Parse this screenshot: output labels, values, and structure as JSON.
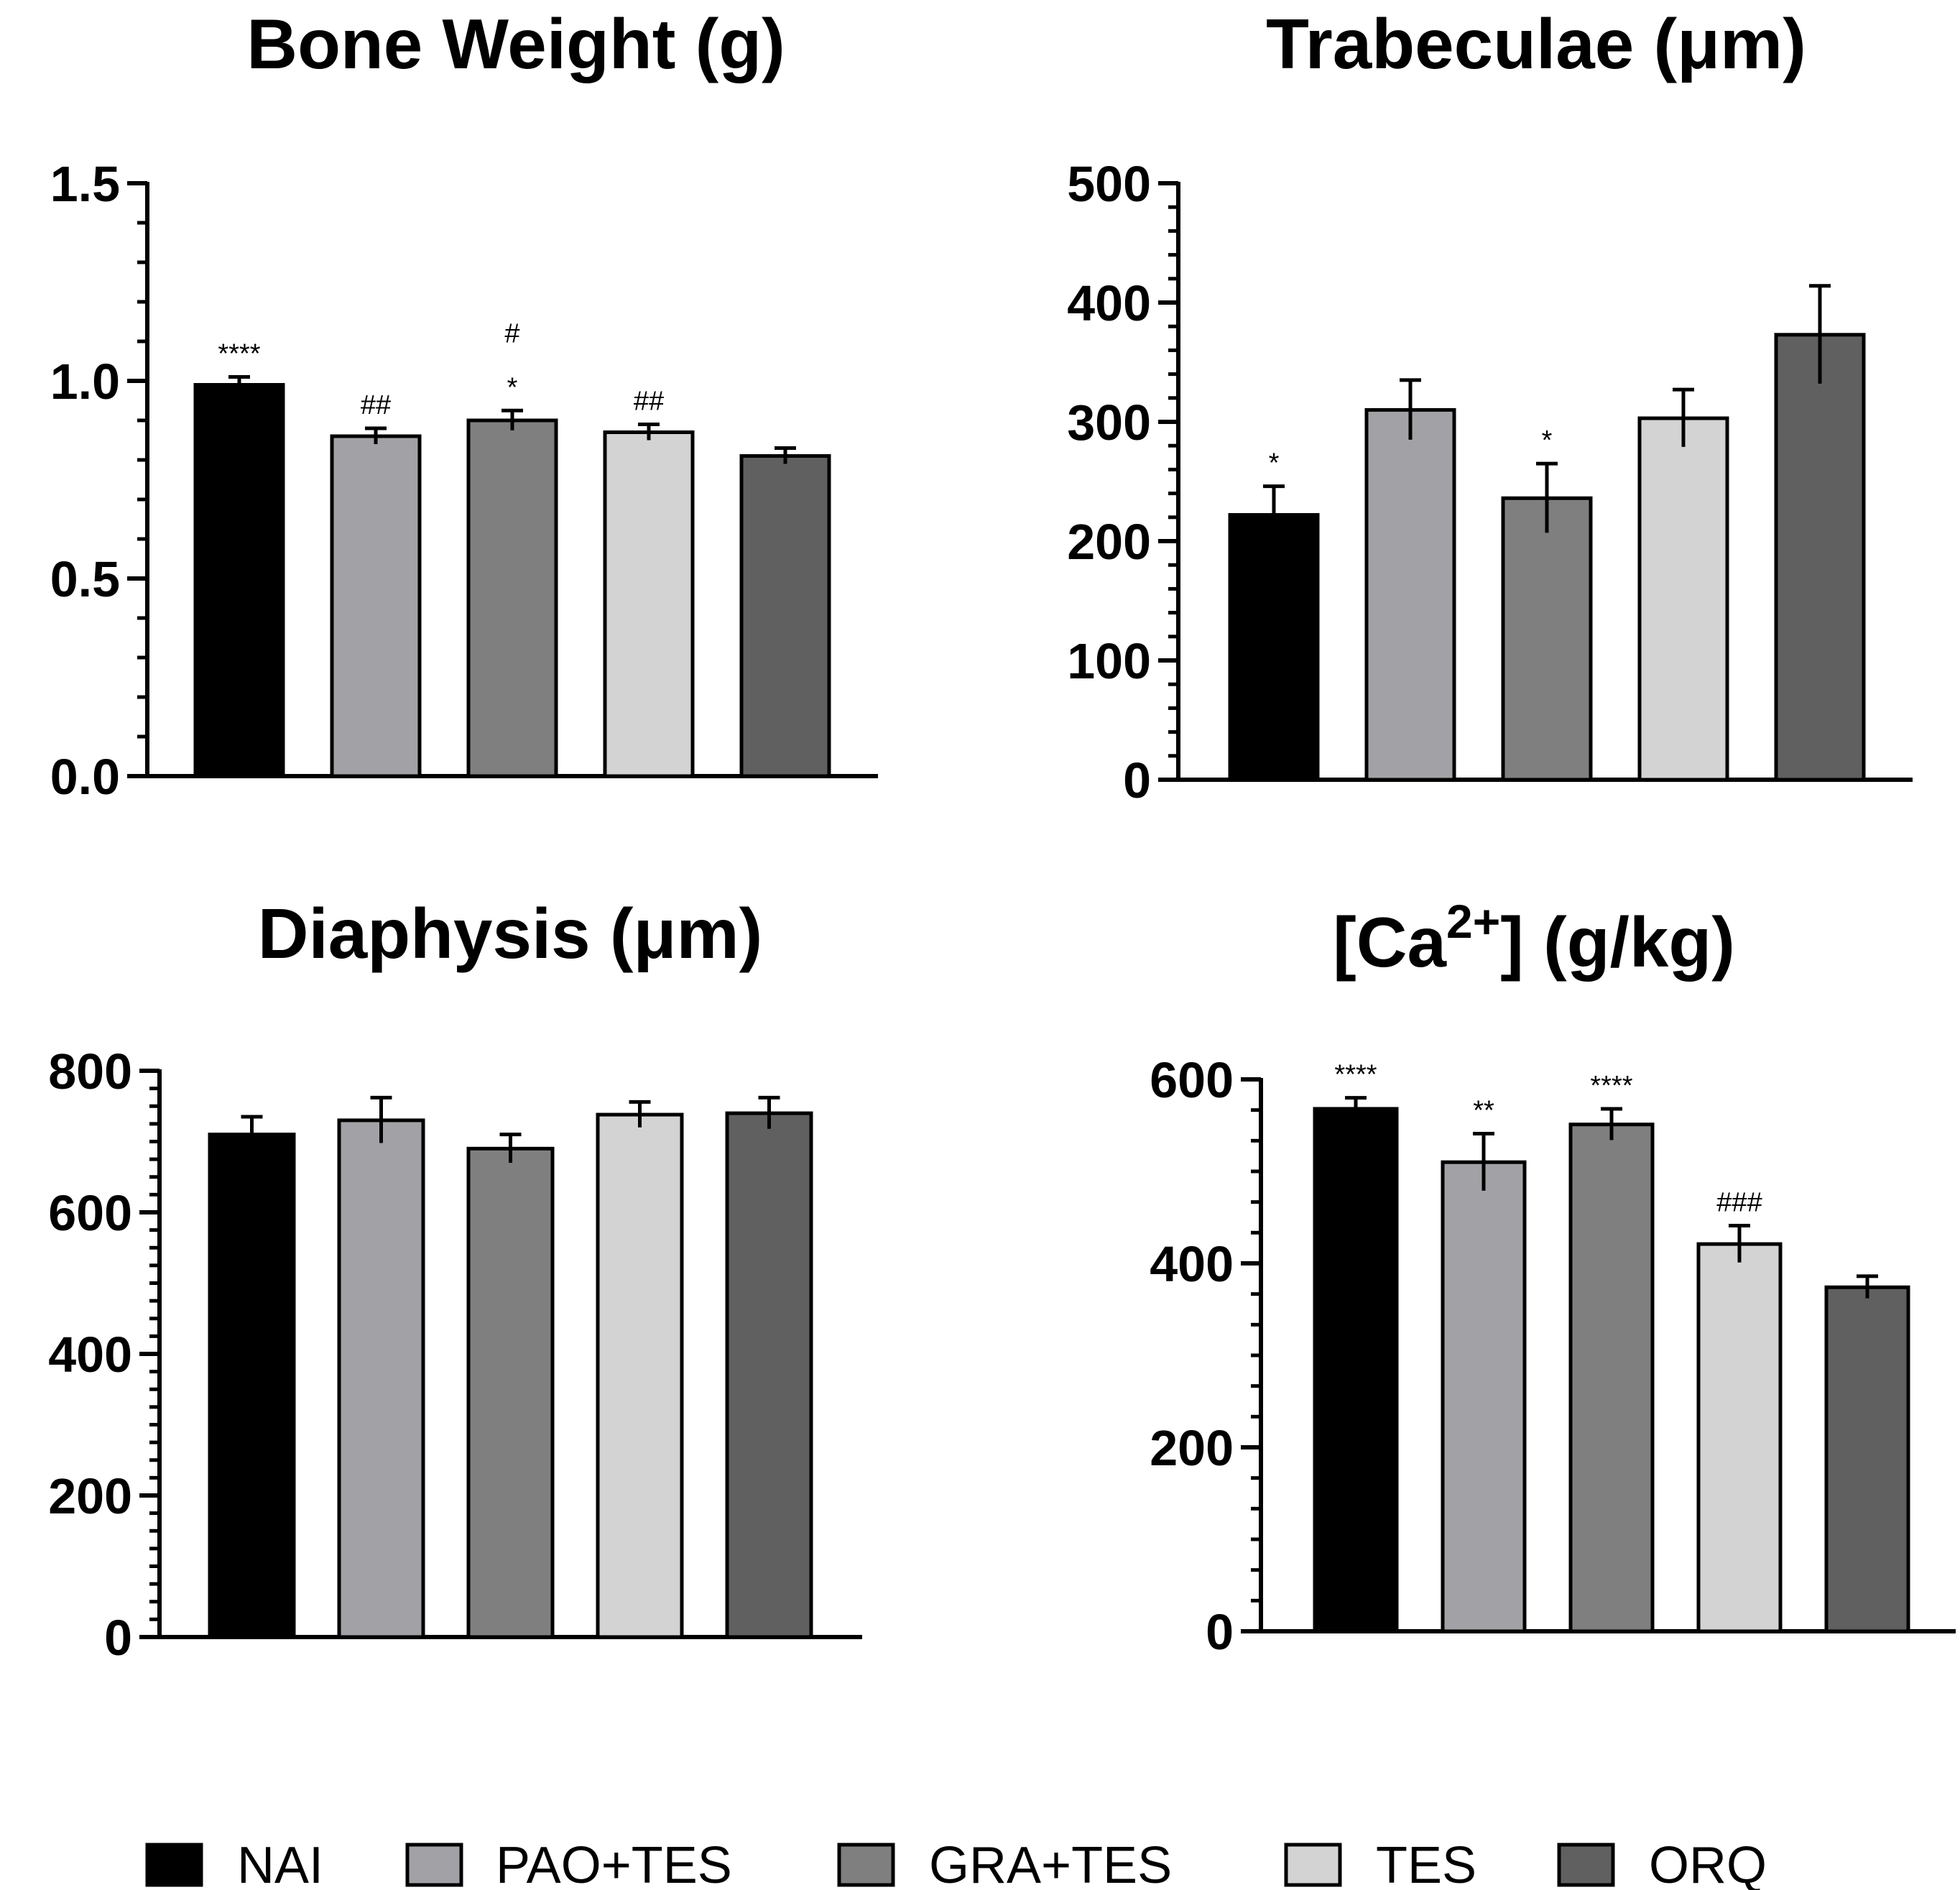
{
  "legend": [
    {
      "label": "NAI",
      "color": "#000000"
    },
    {
      "label": "PAO+TES",
      "color": "#A2A2A6"
    },
    {
      "label": "GRA+TES",
      "color": "#7F7F7F"
    },
    {
      "label": "TES",
      "color": "#D3D3D3"
    },
    {
      "label": "ORQ",
      "color": "#606060"
    }
  ],
  "chart_data": [
    {
      "type": "bar",
      "title": "Bone Weight (g)",
      "categories": [
        "NAI",
        "PAO+TES",
        "GRA+TES",
        "TES",
        "ORQ"
      ],
      "values": [
        0.99,
        0.86,
        0.9,
        0.87,
        0.81
      ],
      "errors": [
        0.02,
        0.02,
        0.025,
        0.02,
        0.02
      ],
      "significance": [
        [
          "****"
        ],
        [
          "##"
        ],
        [
          "*",
          "#"
        ],
        [
          "##"
        ],
        []
      ],
      "ylim": [
        0,
        1.5
      ],
      "yticks": [
        "0.0",
        "0.5",
        "1.0",
        "1.5"
      ],
      "xlabel": "",
      "ylabel": "",
      "grid": false
    },
    {
      "type": "bar",
      "title": "Trabeculae (μm)",
      "categories": [
        "NAI",
        "PAO+TES",
        "GRA+TES",
        "TES",
        "ORQ"
      ],
      "values": [
        222,
        310,
        236,
        303,
        373
      ],
      "errors": [
        24,
        25,
        29,
        24,
        41
      ],
      "significance": [
        [
          "*"
        ],
        [],
        [
          "*"
        ],
        [],
        []
      ],
      "ylim": [
        0,
        500
      ],
      "yticks": [
        "0",
        "100",
        "200",
        "300",
        "400",
        "500"
      ],
      "xlabel": "",
      "ylabel": "",
      "grid": false
    },
    {
      "type": "bar",
      "title": "Diaphysis (μm)",
      "categories": [
        "NAI",
        "PAO+TES",
        "GRA+TES",
        "TES",
        "ORQ"
      ],
      "values": [
        710,
        730,
        690,
        738,
        740
      ],
      "errors": [
        25,
        32,
        20,
        18,
        22
      ],
      "significance": [
        [],
        [],
        [],
        [],
        []
      ],
      "ylim": [
        0,
        800
      ],
      "yticks": [
        "0",
        "200",
        "400",
        "600",
        "800"
      ],
      "xlabel": "",
      "ylabel": "",
      "grid": false
    },
    {
      "type": "bar",
      "title_main": "[Ca",
      "title_sup": "2+",
      "title_rest": "] (g/kg)",
      "categories": [
        "NAI",
        "PAO+TES",
        "GRA+TES",
        "TES",
        "ORQ"
      ],
      "values": [
        568,
        510,
        551,
        421,
        374
      ],
      "errors": [
        12,
        31,
        17,
        20,
        12
      ],
      "significance": [
        [
          "****"
        ],
        [
          "**"
        ],
        [
          "****"
        ],
        [
          "###"
        ],
        []
      ],
      "ylim": [
        0,
        600
      ],
      "yticks": [
        "0",
        "200",
        "400",
        "600"
      ],
      "xlabel": "",
      "ylabel": "",
      "grid": false
    }
  ]
}
